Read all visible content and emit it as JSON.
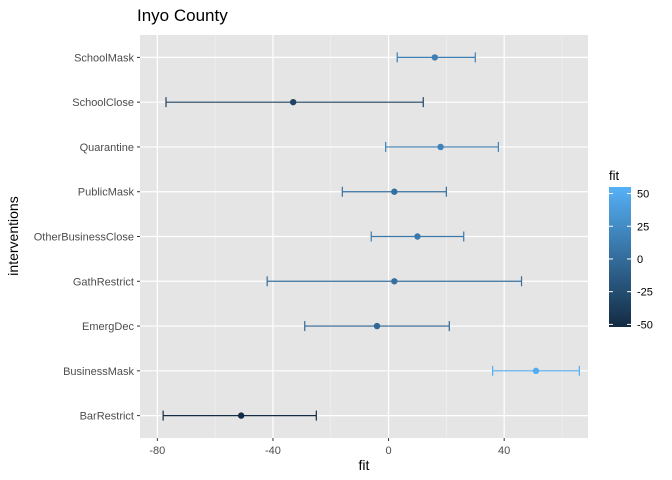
{
  "chart_data": {
    "type": "errorbar",
    "title": "Inyo County",
    "xlabel": "fit",
    "ylabel": "interventions",
    "xlim": [
      -86,
      69
    ],
    "x_ticks": [
      -80,
      -40,
      0,
      40
    ],
    "categories": [
      "SchoolMask",
      "SchoolClose",
      "Quarantine",
      "PublicMask",
      "OtherBusinessClose",
      "GathRestrict",
      "EmergDec",
      "BusinessMask",
      "BarRestrict"
    ],
    "points": [
      {
        "label": "SchoolMask",
        "fit": 16,
        "lower": 3,
        "upper": 30
      },
      {
        "label": "SchoolClose",
        "fit": -33,
        "lower": -77,
        "upper": 12
      },
      {
        "label": "Quarantine",
        "fit": 18,
        "lower": -1,
        "upper": 38
      },
      {
        "label": "PublicMask",
        "fit": 2,
        "lower": -16,
        "upper": 20
      },
      {
        "label": "OtherBusinessClose",
        "fit": 10,
        "lower": -6,
        "upper": 26
      },
      {
        "label": "GathRestrict",
        "fit": 2,
        "lower": -42,
        "upper": 46
      },
      {
        "label": "EmergDec",
        "fit": -4,
        "lower": -29,
        "upper": 21
      },
      {
        "label": "BusinessMask",
        "fit": 51,
        "lower": 36,
        "upper": 66
      },
      {
        "label": "BarRestrict",
        "fit": -51,
        "lower": -78,
        "upper": -25
      }
    ],
    "color_scale": {
      "title": "fit",
      "low_color": "#132b43",
      "high_color": "#56b1f7",
      "range": [
        -52,
        55
      ],
      "breaks": [
        50,
        25,
        0,
        -25,
        -50
      ],
      "break_labels": [
        "50",
        "25",
        "0",
        "-25",
        "-50"
      ]
    },
    "panel_background": "#e5e5e5",
    "grid": true,
    "legend_position": "right"
  }
}
